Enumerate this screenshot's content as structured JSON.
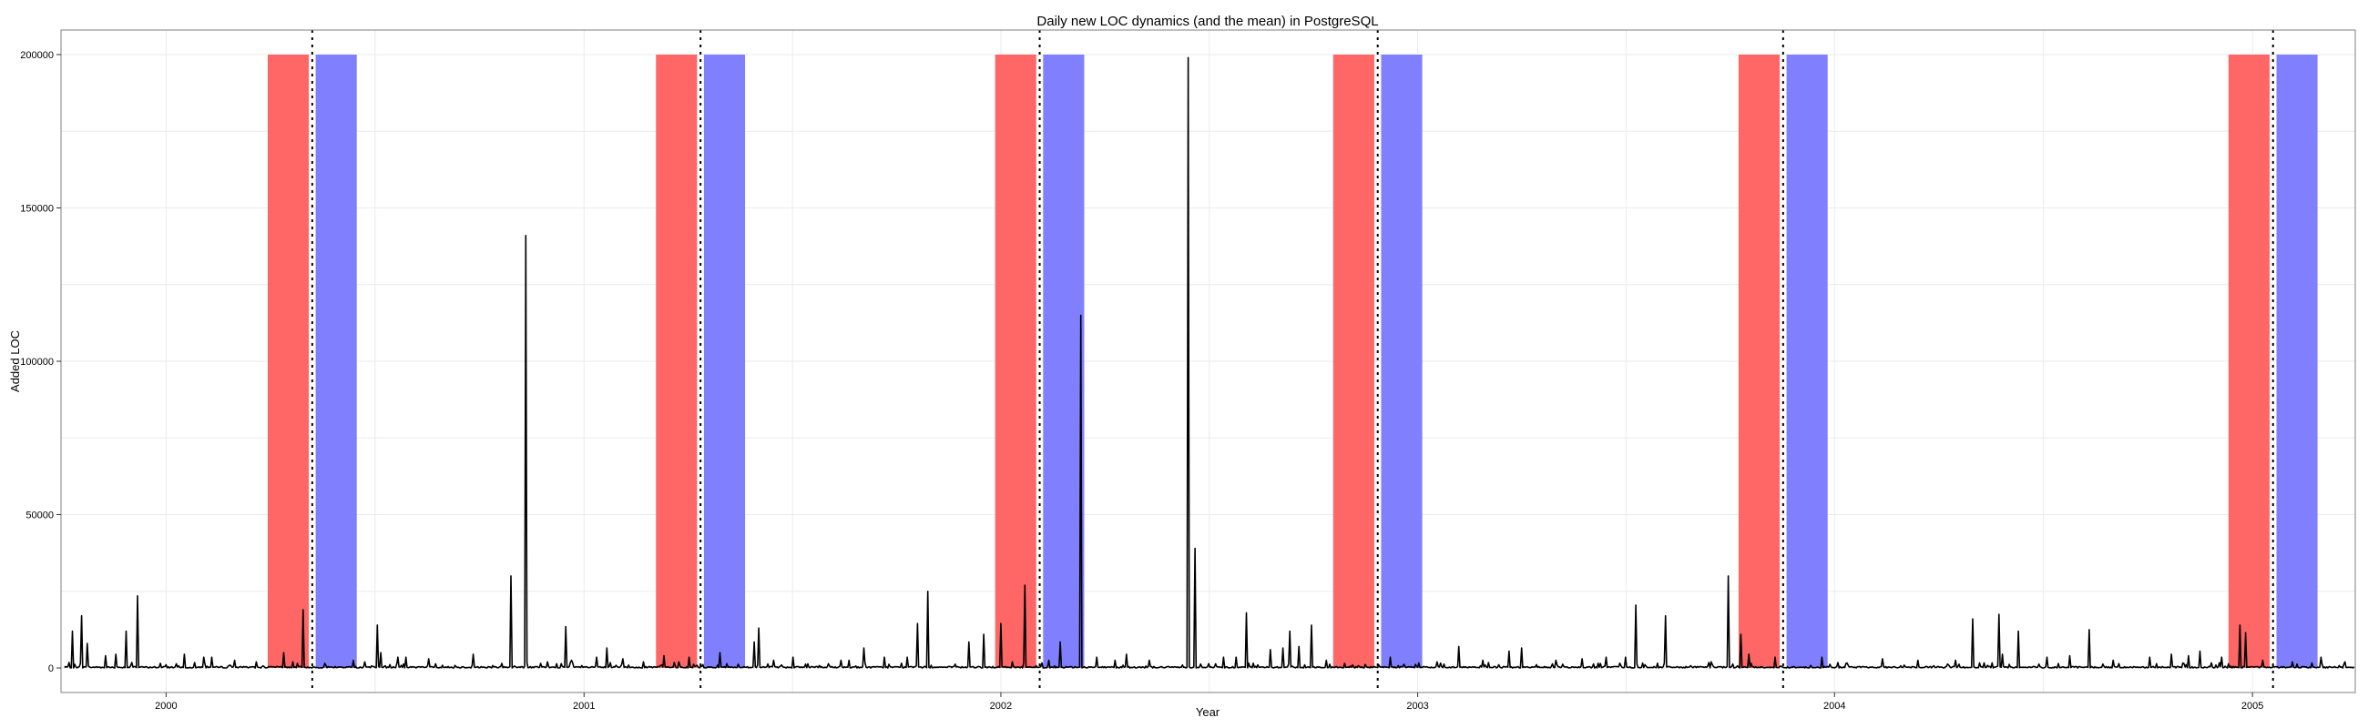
{
  "chart_data": {
    "type": "line",
    "title": "Daily new LOC dynamics (and the mean) in PostgreSQL",
    "xlabel": "Year",
    "ylabel": "Added LOC",
    "xlim": [
      "1999-10-01",
      "2005-04-01"
    ],
    "ylim": [
      -8000,
      208000
    ],
    "x_ticks": [
      "2000-01-01",
      "2001-01-01",
      "2002-01-01",
      "2003-01-01",
      "2004-01-01",
      "2005-01-01"
    ],
    "x_tick_labels": [
      "2000",
      "2001",
      "2002",
      "2003",
      "2004",
      "2005"
    ],
    "y_ticks": [
      0,
      50000,
      100000,
      150000,
      200000
    ],
    "y_tick_labels": [
      "0",
      "50000",
      "100000",
      "150000",
      "200000"
    ],
    "grid": true,
    "releases": [
      "2000-05-08",
      "2001-04-13",
      "2002-02-04",
      "2002-11-27",
      "2003-11-17",
      "2005-01-19"
    ],
    "band_top": 200000,
    "band_colors": {
      "before": "#ff6666",
      "after": "#8080ff"
    },
    "release_line_color": "#000000",
    "line_color": "#000000",
    "spikes": [
      [
        "1999-10-11",
        12000
      ],
      [
        "1999-10-19",
        17000
      ],
      [
        "1999-10-24",
        8000
      ],
      [
        "1999-11-09",
        4000
      ],
      [
        "1999-11-18",
        4500
      ],
      [
        "1999-11-27",
        12000
      ],
      [
        "1999-12-07",
        23500
      ],
      [
        "2000-01-17",
        4500
      ],
      [
        "2000-02-03",
        3500
      ],
      [
        "2000-02-10",
        3500
      ],
      [
        "2000-03-01",
        2500
      ],
      [
        "2000-03-20",
        2000
      ],
      [
        "2000-04-13",
        5000
      ],
      [
        "2000-04-21",
        2000
      ],
      [
        "2000-04-30",
        19000
      ],
      [
        "2000-05-19",
        1500
      ],
      [
        "2000-06-13",
        2500
      ],
      [
        "2000-06-23",
        2000
      ],
      [
        "2000-07-04",
        14000
      ],
      [
        "2000-07-07",
        5000
      ],
      [
        "2000-07-22",
        3500
      ],
      [
        "2000-07-29",
        3500
      ],
      [
        "2000-08-18",
        3000
      ],
      [
        "2000-09-26",
        4500
      ],
      [
        "2000-10-21",
        1500
      ],
      [
        "2000-10-29",
        30000
      ],
      [
        "2000-11-11",
        141000
      ],
      [
        "2000-11-30",
        2000
      ],
      [
        "2000-12-16",
        13500
      ],
      [
        "2000-12-21",
        2500
      ],
      [
        "2001-01-12",
        3500
      ],
      [
        "2001-01-21",
        6500
      ],
      [
        "2001-02-04",
        3000
      ],
      [
        "2001-02-22",
        2000
      ],
      [
        "2001-03-12",
        4000
      ],
      [
        "2001-03-25",
        2000
      ],
      [
        "2001-04-03",
        3500
      ],
      [
        "2001-04-30",
        5000
      ],
      [
        "2001-05-30",
        8500
      ],
      [
        "2001-06-03",
        13000
      ],
      [
        "2001-06-16",
        2500
      ],
      [
        "2001-07-03",
        3500
      ],
      [
        "2001-08-14",
        2500
      ],
      [
        "2001-08-21",
        2500
      ],
      [
        "2001-09-03",
        6500
      ],
      [
        "2001-09-21",
        3500
      ],
      [
        "2001-10-11",
        3500
      ],
      [
        "2001-10-20",
        14500
      ],
      [
        "2001-10-29",
        25000
      ],
      [
        "2001-12-04",
        8500
      ],
      [
        "2001-12-17",
        11000
      ],
      [
        "2002-01-01",
        14500
      ],
      [
        "2002-01-11",
        2000
      ],
      [
        "2002-01-22",
        27000
      ],
      [
        "2002-02-12",
        2500
      ],
      [
        "2002-02-22",
        8500
      ],
      [
        "2002-03-12",
        115000
      ],
      [
        "2002-03-26",
        3500
      ],
      [
        "2002-04-11",
        2500
      ],
      [
        "2002-04-21",
        4500
      ],
      [
        "2002-05-11",
        2500
      ],
      [
        "2002-06-14",
        199000
      ],
      [
        "2002-06-20",
        39000
      ],
      [
        "2002-07-15",
        3500
      ],
      [
        "2002-07-26",
        3500
      ],
      [
        "2002-08-04",
        18000
      ],
      [
        "2002-08-25",
        6000
      ],
      [
        "2002-09-05",
        6500
      ],
      [
        "2002-09-11",
        12000
      ],
      [
        "2002-09-19",
        7000
      ],
      [
        "2002-09-30",
        14000
      ],
      [
        "2002-10-13",
        2500
      ],
      [
        "2002-12-08",
        3500
      ],
      [
        "2003-01-18",
        2000
      ],
      [
        "2003-02-06",
        7000
      ],
      [
        "2003-02-27",
        2500
      ],
      [
        "2003-03-22",
        5500
      ],
      [
        "2003-04-02",
        6500
      ],
      [
        "2003-05-02",
        2500
      ],
      [
        "2003-05-25",
        3000
      ],
      [
        "2003-06-15",
        3500
      ],
      [
        "2003-07-02",
        3500
      ],
      [
        "2003-07-11",
        20500
      ],
      [
        "2003-08-06",
        17000
      ],
      [
        "2003-09-15",
        2000
      ],
      [
        "2003-09-30",
        30000
      ],
      [
        "2003-10-11",
        11000
      ],
      [
        "2003-10-18",
        4500
      ],
      [
        "2003-11-10",
        3500
      ],
      [
        "2003-12-21",
        3500
      ],
      [
        "2004-02-12",
        3000
      ],
      [
        "2004-03-14",
        2500
      ],
      [
        "2004-04-16",
        2500
      ],
      [
        "2004-05-01",
        16000
      ],
      [
        "2004-05-24",
        17500
      ],
      [
        "2004-05-27",
        4500
      ],
      [
        "2004-06-10",
        12000
      ],
      [
        "2004-07-05",
        3500
      ],
      [
        "2004-07-25",
        4000
      ],
      [
        "2004-08-11",
        12500
      ],
      [
        "2004-09-01",
        2500
      ],
      [
        "2004-10-03",
        3500
      ],
      [
        "2004-10-22",
        4500
      ],
      [
        "2004-11-06",
        4000
      ],
      [
        "2004-11-16",
        5500
      ],
      [
        "2004-12-05",
        3500
      ],
      [
        "2004-12-21",
        14000
      ],
      [
        "2004-12-26",
        11500
      ],
      [
        "2005-01-10",
        2500
      ],
      [
        "2005-02-05",
        2000
      ],
      [
        "2005-03-02",
        3500
      ],
      [
        "2005-03-23",
        2000
      ]
    ]
  }
}
